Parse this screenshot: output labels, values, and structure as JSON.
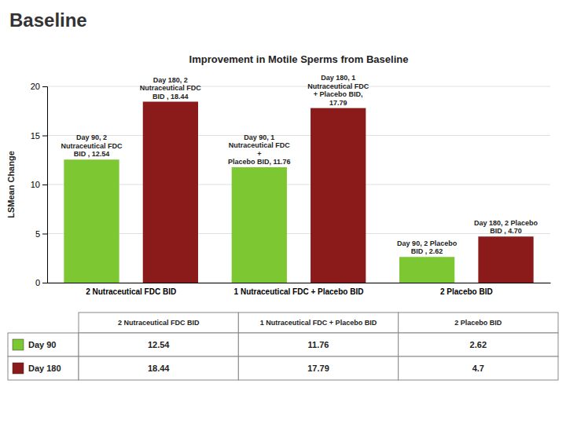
{
  "chart_data": {
    "type": "bar",
    "subtitle": "Baseline",
    "title": "Improvement in Motile Sperms from Baseline",
    "y_label": "LSMean Change",
    "categories": [
      "2 Nutraceutical FDC BID",
      "1 Nutraceutical FDC + Placebo BID",
      "2 Placebo BID"
    ],
    "series": [
      {
        "name": "Day 90",
        "color": "#7DC832",
        "values": [
          12.54,
          11.76,
          2.62
        ],
        "value_labels": [
          "Day 90, 2 Nutraceutical FDC\nBID , 12.54",
          "Day 90, 1 Nutraceutical FDC +\nPlacebo BID, 11.76",
          "Day 90, 2 Placebo BID , 2.62"
        ]
      },
      {
        "name": "Day 180",
        "color": "#8B1A1A",
        "values": [
          18.44,
          17.79,
          4.7
        ],
        "value_labels": [
          "Day 180, 2 Nutraceutical FDC\nBID , 18.44",
          "Day 180, 1 Nutraceutical FDC\n+ Placebo BID, 17.79",
          "Day 180, 2 Placebo BID , 4.70"
        ]
      }
    ],
    "ylim": [
      0,
      20
    ],
    "yticks": [
      0,
      5,
      10,
      15,
      20
    ],
    "grid": true,
    "data_labels": true
  }
}
